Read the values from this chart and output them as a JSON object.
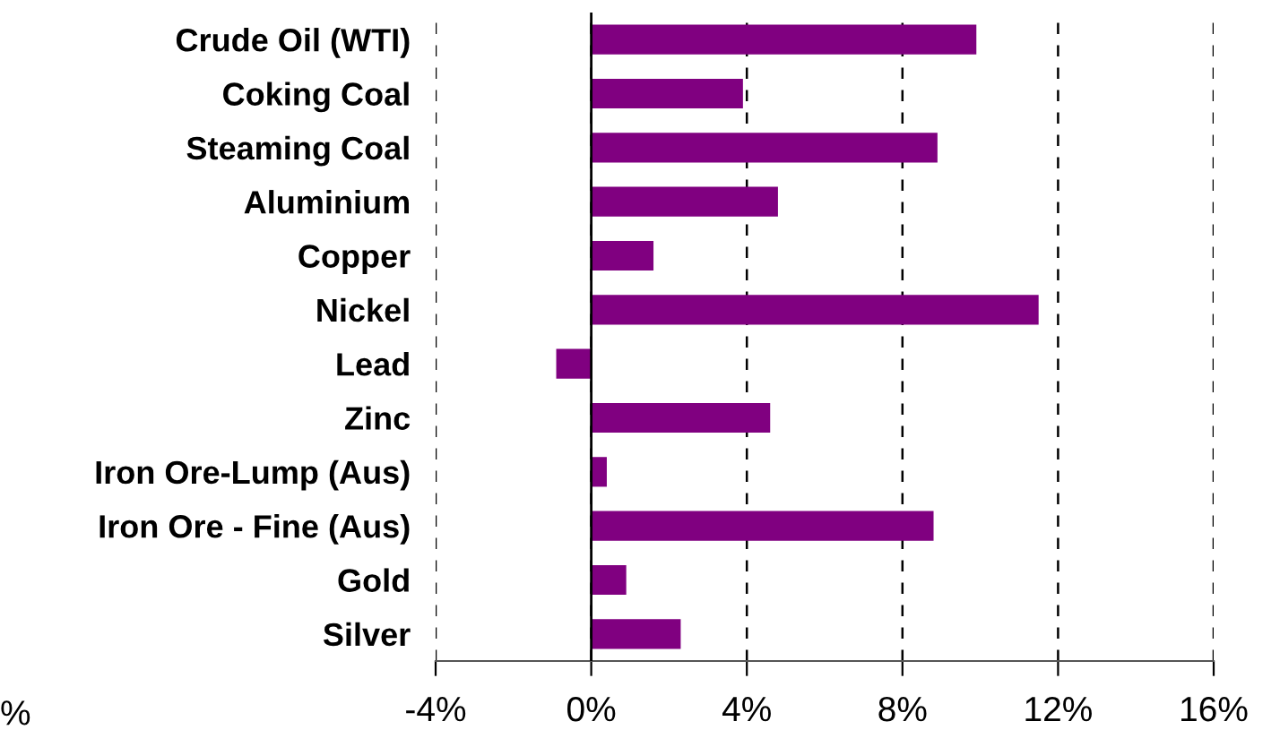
{
  "chart_data": {
    "type": "bar",
    "orientation": "horizontal",
    "categories": [
      "Crude Oil (WTI)",
      "Coking Coal",
      "Steaming Coal",
      "Aluminium",
      "Copper",
      "Nickel",
      "Lead",
      "Zinc",
      "Iron Ore-Lump (Aus)",
      "Iron Ore - Fine (Aus)",
      "Gold",
      "Silver"
    ],
    "values": [
      9.9,
      3.9,
      8.9,
      4.8,
      1.6,
      11.5,
      -0.9,
      4.6,
      0.4,
      8.8,
      0.9,
      2.3
    ],
    "color": "#800080",
    "xlim": [
      -4,
      16
    ],
    "xticks": [
      {
        "value": -4,
        "label": "-4%"
      },
      {
        "value": 0,
        "label": "0%"
      },
      {
        "value": 4,
        "label": "4%"
      },
      {
        "value": 8,
        "label": "8%"
      },
      {
        "value": 12,
        "label": "12%"
      },
      {
        "value": 16,
        "label": "16%"
      }
    ],
    "grid": "x",
    "ref_lines": [
      {
        "axis": "x",
        "value": 0,
        "color": "#000000",
        "line_style": "solid"
      }
    ],
    "annotations": [
      "%"
    ]
  }
}
